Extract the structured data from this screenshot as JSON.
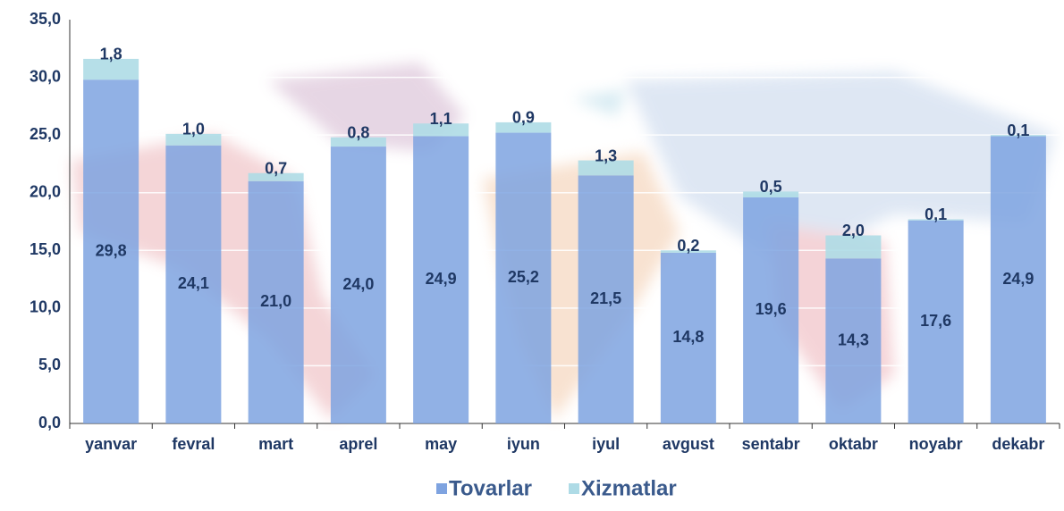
{
  "chart_data": {
    "type": "stacked_bar",
    "categories": [
      "yanvar",
      "fevral",
      "mart",
      "aprel",
      "may",
      "iyun",
      "iyul",
      "avgust",
      "sentabr",
      "oktabr",
      "noyabr",
      "dekabr"
    ],
    "series": [
      {
        "name": "Tovarlar",
        "color": "#7ea3e0",
        "values": [
          29.8,
          24.1,
          21.0,
          24.0,
          24.9,
          25.2,
          21.5,
          14.8,
          19.6,
          14.3,
          17.6,
          24.9
        ],
        "value_labels": [
          "29,8",
          "24,1",
          "21,0",
          "24,0",
          "24,9",
          "25,2",
          "21,5",
          "14,8",
          "19,6",
          "14,3",
          "17,6",
          "24,9"
        ]
      },
      {
        "name": "Xizmatlar",
        "color": "#aedbe6",
        "values": [
          1.8,
          1.0,
          0.7,
          0.8,
          1.1,
          0.9,
          1.3,
          0.2,
          0.5,
          2.0,
          0.1,
          0.1
        ],
        "value_labels": [
          "1,8",
          "1,0",
          "0,7",
          "0,8",
          "1,1",
          "0,9",
          "1,3",
          "0,2",
          "0,5",
          "2,0",
          "0,1",
          "0,1"
        ]
      }
    ],
    "ylim": [
      0,
      35
    ],
    "yticks": [
      {
        "value": 0,
        "label": "0,0"
      },
      {
        "value": 5,
        "label": "5,0"
      },
      {
        "value": 10,
        "label": "10,0"
      },
      {
        "value": 15,
        "label": "15,0"
      },
      {
        "value": 20,
        "label": "20,0"
      },
      {
        "value": 25,
        "label": "25,0"
      },
      {
        "value": 30,
        "label": "30,0"
      },
      {
        "value": 35,
        "label": "35,0"
      }
    ],
    "grid": true,
    "legend": "bottom"
  }
}
